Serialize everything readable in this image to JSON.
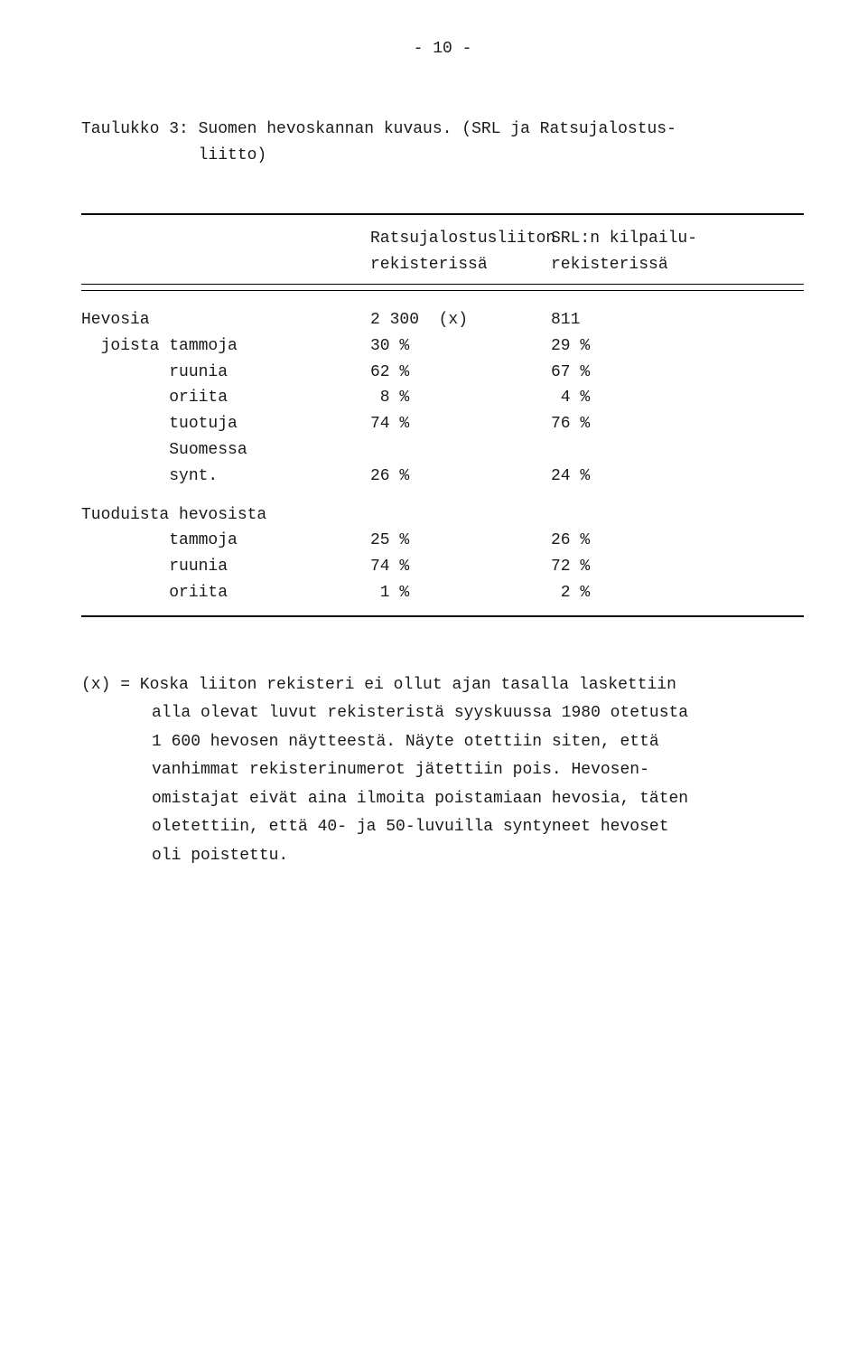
{
  "pageNumber": "- 10 -",
  "title1": "Taulukko 3: Suomen hevoskannan kuvaus. (SRL ja Ratsujalostus-",
  "title2": "            liitto)",
  "header": {
    "c1a": "",
    "c2a": "Ratsujalostusliiton",
    "c3a": "SRL:n kilpailu-",
    "c1b": "",
    "c2b": "rekisterissä",
    "c3b": "rekisterissä"
  },
  "rows1": [
    {
      "label": "Hevosia",
      "a": "2 300  (x)",
      "b": "811"
    },
    {
      "label": "  joista tammoja",
      "a": "30 %",
      "b": "29 %"
    },
    {
      "label": "         ruunia",
      "a": "62 %",
      "b": "67 %"
    },
    {
      "label": "         oriita",
      "a": " 8 %",
      "b": " 4 %"
    },
    {
      "label": "         tuotuja",
      "a": "74 %",
      "b": "76 %"
    },
    {
      "label": "         Suomessa",
      "a": "",
      "b": ""
    },
    {
      "label": "         synt.",
      "a": "26 %",
      "b": "24 %"
    }
  ],
  "sub2": "Tuoduista hevosista",
  "rows2": [
    {
      "label": "         tammoja",
      "a": "25 %",
      "b": "26 %"
    },
    {
      "label": "         ruunia",
      "a": "74 %",
      "b": "72 %"
    },
    {
      "label": "         oriita",
      "a": " 1 %",
      "b": " 2 %"
    }
  ],
  "footnote": {
    "l1": "(x) = Koska liiton rekisteri ei ollut ajan tasalla laskettiin",
    "l2": "alla olevat luvut rekisteristä syyskuussa 1980 otetusta",
    "l3": "1 600 hevosen näytteestä. Näyte otettiin siten, että",
    "l4": "vanhimmat rekisterinumerot jätettiin pois. Hevosen-",
    "l5": "omistajat eivät aina ilmoita poistamiaan hevosia, täten",
    "l6": "oletettiin, että 40- ja 50-luvuilla syntyneet hevoset",
    "l7": "oli poistettu."
  }
}
